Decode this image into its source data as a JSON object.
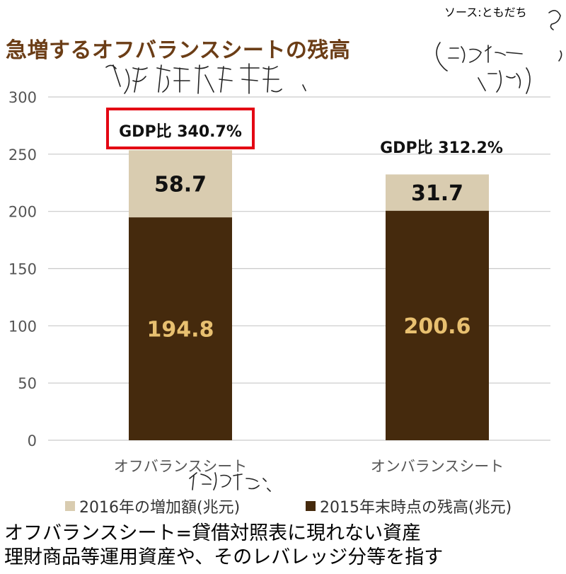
{
  "source_label": "ソース:ともだち",
  "title": "急増するオフバランスシートの残高",
  "colors": {
    "title": "#6b3d16",
    "bar_2015": "#452a0d",
    "bar_2016": "#d9ccb0",
    "label_2015": "#e8c070",
    "highlight_box": "#e30613"
  },
  "chart_data": {
    "type": "bar",
    "stacked": true,
    "categories": [
      "オフバランスシート",
      "オンバランスシート"
    ],
    "series": [
      {
        "name": "2015年末時点の残高(兆元)",
        "values": [
          194.8,
          200.6
        ]
      },
      {
        "name": "2016年の増加額(兆元)",
        "values": [
          58.7,
          31.7
        ]
      }
    ],
    "value_labels": [
      [
        "194.8",
        "200.6"
      ],
      [
        "58.7",
        "31.7"
      ]
    ],
    "annotations": [
      "GDP比 340.7%",
      "GDP比 312.2%"
    ],
    "highlighted_annotation": 0,
    "y_ticks": [
      "0",
      "50",
      "100",
      "150",
      "200",
      "250",
      "300"
    ],
    "ylim": [
      0,
      300
    ],
    "legend": [
      "2016年の増加額(兆元)",
      "2015年末時点の残高(兆元)"
    ],
    "legend_position": "bottom"
  },
  "bottom_note": [
    "オフバランスシート=貸借対照表に現れない資産",
    "理財商品等運用資産や、そのレバレッジ分等を指す"
  ]
}
